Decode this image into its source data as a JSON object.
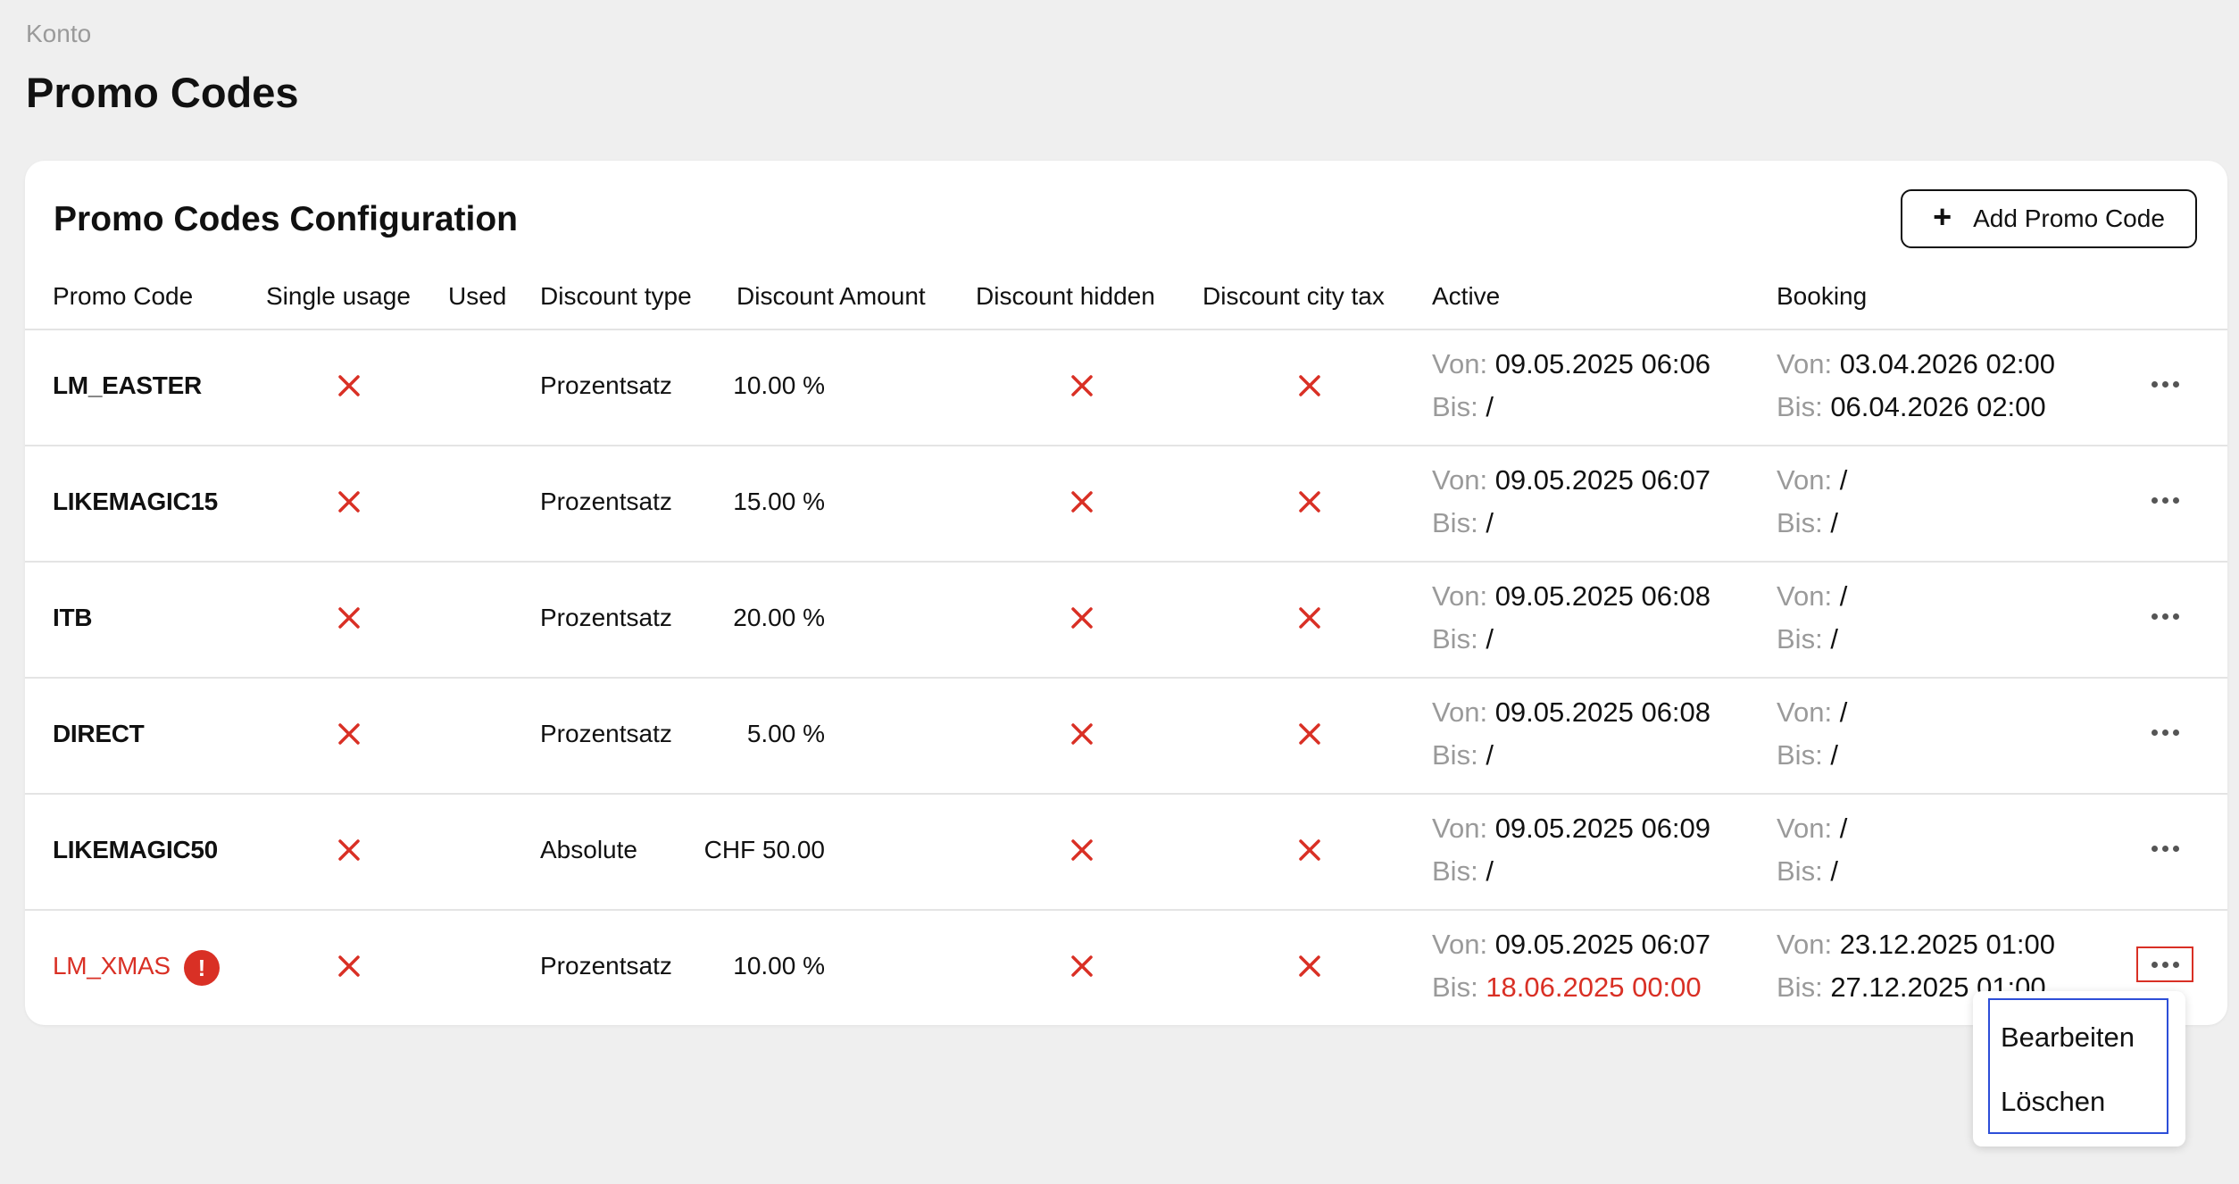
{
  "breadcrumb": "Konto",
  "page_title": "Promo Codes",
  "card": {
    "title": "Promo Codes Configuration",
    "add_button_icon": "plus-icon",
    "add_button_label": "Add Promo Code"
  },
  "table": {
    "headers": {
      "promo_code": "Promo Code",
      "single_usage": "Single usage",
      "used": "Used",
      "discount_type": "Discount type",
      "discount_amount": "Discount Amount",
      "discount_hidden": "Discount hidden",
      "discount_city_tax": "Discount city tax",
      "active": "Active",
      "booking": "Booking"
    },
    "labels": {
      "von": "Von:",
      "bis": "Bis:"
    },
    "rows": [
      {
        "code": "LM_EASTER",
        "single_usage": false,
        "used": "",
        "discount_type": "Prozentsatz",
        "discount_amount": "10.00 %",
        "discount_hidden": false,
        "discount_city_tax": false,
        "active_von": "09.05.2025 06:06",
        "active_bis": "/",
        "booking_von": "03.04.2026 02:00",
        "booking_bis": "06.04.2026 02:00"
      },
      {
        "code": "LIKEMAGIC15",
        "single_usage": false,
        "used": "",
        "discount_type": "Prozentsatz",
        "discount_amount": "15.00 %",
        "discount_hidden": false,
        "discount_city_tax": false,
        "active_von": "09.05.2025 06:07",
        "active_bis": "/",
        "booking_von": "/",
        "booking_bis": "/"
      },
      {
        "code": "ITB",
        "single_usage": false,
        "used": "",
        "discount_type": "Prozentsatz",
        "discount_amount": "20.00 %",
        "discount_hidden": false,
        "discount_city_tax": false,
        "active_von": "09.05.2025 06:08",
        "active_bis": "/",
        "booking_von": "/",
        "booking_bis": "/"
      },
      {
        "code": "DIRECT",
        "single_usage": false,
        "used": "",
        "discount_type": "Prozentsatz",
        "discount_amount": "5.00 %",
        "discount_hidden": false,
        "discount_city_tax": false,
        "active_von": "09.05.2025 06:08",
        "active_bis": "/",
        "booking_von": "/",
        "booking_bis": "/"
      },
      {
        "code": "LIKEMAGIC50",
        "single_usage": false,
        "used": "",
        "discount_type": "Absolute",
        "discount_amount": "CHF 50.00",
        "discount_hidden": false,
        "discount_city_tax": false,
        "active_von": "09.05.2025 06:09",
        "active_bis": "/",
        "booking_von": "/",
        "booking_bis": "/"
      },
      {
        "code": "LM_XMAS",
        "expired": true,
        "warning_icon": "exclamation-icon",
        "warning_symbol": "!",
        "single_usage": false,
        "used": "",
        "discount_type": "Prozentsatz",
        "discount_amount": "10.00 %",
        "discount_hidden": false,
        "discount_city_tax": false,
        "active_von": "09.05.2025 06:07",
        "active_bis": "18.06.2025 00:00",
        "booking_von": "23.12.2025 01:00",
        "booking_bis": "27.12.2025 01:00"
      }
    ]
  },
  "context_menu": {
    "items": [
      "Bearbeiten",
      "Löschen"
    ]
  },
  "colors": {
    "background": "#efefef",
    "card": "#ffffff",
    "danger": "#d93025",
    "focus": "#2d4ed8",
    "muted": "#9a9a9a"
  }
}
